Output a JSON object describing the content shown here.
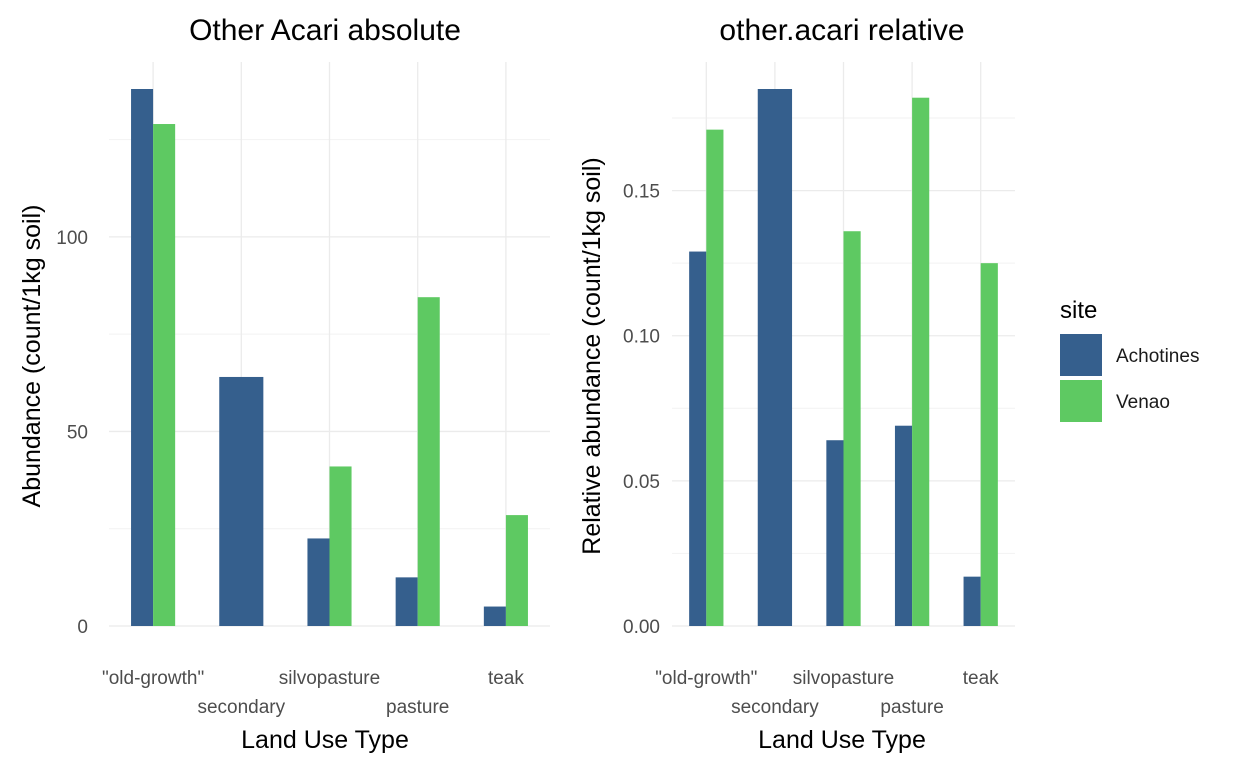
{
  "chart_data": [
    {
      "type": "bar",
      "title": "Other Acari absolute",
      "xlabel": "Land Use Type",
      "ylabel": "Abundance (count/1kg soil)",
      "categories": [
        "\"old-growth\"",
        "secondary",
        "silvopasture",
        "pasture",
        "teak"
      ],
      "ylim": [
        0,
        138
      ],
      "yticks": [
        0,
        50,
        100
      ],
      "yticks_text": [
        "0",
        "50",
        "100"
      ],
      "series": [
        {
          "name": "Achotines",
          "values": [
            138,
            64,
            22.5,
            12.5,
            5
          ]
        },
        {
          "name": "Venao",
          "values": [
            129,
            null,
            41,
            84.5,
            28.5
          ]
        }
      ]
    },
    {
      "type": "bar",
      "title": "other.acari relative",
      "xlabel": "Land Use Type",
      "ylabel": "Relative abundance (count/1kg soil)",
      "categories": [
        "\"old-growth\"",
        "secondary",
        "silvopasture",
        "pasture",
        "teak"
      ],
      "ylim": [
        0,
        0.185
      ],
      "yticks": [
        0,
        0.05,
        0.1,
        0.15
      ],
      "yticks_text": [
        "0.00",
        "0.05",
        "0.10",
        "0.15"
      ],
      "series": [
        {
          "name": "Achotines",
          "values": [
            0.129,
            0.185,
            0.064,
            0.069,
            0.017
          ]
        },
        {
          "name": "Venao",
          "values": [
            0.171,
            null,
            0.136,
            0.182,
            0.125
          ]
        }
      ]
    }
  ],
  "legend": {
    "title": "site",
    "placement": "right",
    "items": [
      {
        "label": "Achotines",
        "color": "#355f8d"
      },
      {
        "label": "Venao",
        "color": "#5ec962"
      }
    ]
  }
}
